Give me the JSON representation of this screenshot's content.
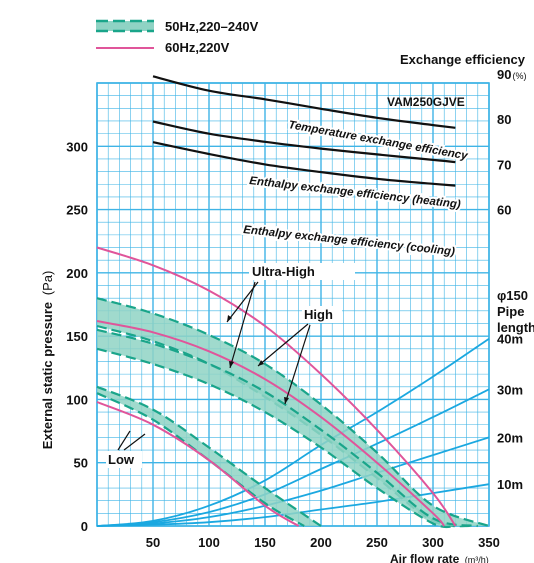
{
  "chart_data": {
    "type": "line",
    "model_label": "VAM250GJVE",
    "xlabel": "Air flow rate",
    "xlabel_unit": "(m³/h)",
    "ylabel": "External static pressure",
    "ylabel_unit": "(Pa)",
    "right_axis_title": "Exchange efficiency",
    "right_axis_unit": "(%)",
    "pipe_label_lines": [
      "φ150",
      "Pipe",
      "length"
    ],
    "xlim": [
      0,
      350
    ],
    "ylim_left": [
      0,
      350
    ],
    "ylim_right": [
      50,
      95
    ],
    "x_ticks": [
      "50",
      "100",
      "150",
      "200",
      "250",
      "300",
      "350"
    ],
    "y_ticks_left": [
      "0",
      "50",
      "100",
      "150",
      "200",
      "250",
      "300"
    ],
    "y_ticks_right": [
      "60",
      "70",
      "80",
      "90"
    ],
    "legend": [
      {
        "label": "50Hz,220–240V",
        "style": "dashed",
        "color": "#1aa58a"
      },
      {
        "label": "60Hz,220V",
        "style": "solid",
        "color": "#e0559a"
      }
    ],
    "annotations": {
      "ultra_high": "Ultra-High",
      "high": "High",
      "low": "Low"
    },
    "efficiency_series": [
      {
        "name": "Temperature exchange efficiency",
        "x": [
          50,
          100,
          150,
          200,
          250,
          300,
          320
        ],
        "y": [
          89.5,
          86.3,
          84.4,
          82.3,
          80.3,
          78.7,
          78.1
        ]
      },
      {
        "name": "Enthalpy exchange efficiency (heating)",
        "x": [
          50,
          100,
          150,
          200,
          250,
          300,
          320
        ],
        "y": [
          79.5,
          76.8,
          75.0,
          73.5,
          72.2,
          71.0,
          70.5
        ]
      },
      {
        "name": "Enthalpy exchange efficiency (cooling)",
        "x": [
          50,
          100,
          150,
          200,
          250,
          300,
          320
        ],
        "y": [
          74.9,
          72.3,
          70.0,
          68.3,
          66.8,
          65.7,
          65.3
        ]
      }
    ],
    "pipe_resistance_series": [
      {
        "name": "40m",
        "x": [
          0,
          50,
          100,
          150,
          200,
          250,
          300,
          350
        ],
        "y": [
          0,
          4,
          16,
          36,
          64,
          90,
          118,
          148
        ]
      },
      {
        "name": "30m",
        "x": [
          0,
          50,
          100,
          150,
          200,
          250,
          300,
          350
        ],
        "y": [
          0,
          3,
          11,
          25,
          45,
          65,
          86,
          108
        ]
      },
      {
        "name": "20m",
        "x": [
          0,
          50,
          100,
          150,
          200,
          250,
          300,
          350
        ],
        "y": [
          0,
          2,
          7,
          16,
          28,
          42,
          56,
          70
        ]
      },
      {
        "name": "10m",
        "x": [
          0,
          50,
          100,
          150,
          200,
          250,
          300,
          350
        ],
        "y": [
          0,
          1,
          3,
          7,
          13,
          19,
          26,
          33
        ]
      }
    ],
    "fan_curves_60hz": [
      {
        "name": "Ultra-High",
        "x": [
          0,
          50,
          100,
          150,
          200,
          250,
          300,
          320
        ],
        "y": [
          220,
          206,
          186,
          158,
          120,
          76,
          26,
          0
        ]
      },
      {
        "name": "High",
        "x": [
          0,
          50,
          100,
          150,
          200,
          250,
          300,
          310
        ],
        "y": [
          162,
          153,
          138,
          116,
          86,
          50,
          10,
          0
        ]
      },
      {
        "name": "Low",
        "x": [
          0,
          50,
          100,
          150,
          180
        ],
        "y": [
          98,
          80,
          52,
          16,
          0
        ]
      }
    ],
    "fan_bands_50hz": [
      {
        "name": "Ultra-High",
        "upper": {
          "x": [
            0,
            50,
            100,
            150,
            200,
            250,
            300,
            350
          ],
          "y": [
            180,
            168,
            151,
            128,
            96,
            58,
            16,
            0
          ]
        },
        "lower": {
          "x": [
            0,
            50,
            100,
            150,
            200,
            250,
            300,
            335
          ],
          "y": [
            158,
            146,
            128,
            102,
            72,
            38,
            4,
            0
          ]
        }
      },
      {
        "name": "High",
        "upper": {
          "x": [
            0,
            50,
            100,
            150,
            200,
            250,
            300,
            340
          ],
          "y": [
            155,
            144,
            128,
            106,
            76,
            42,
            6,
            0
          ]
        },
        "lower": {
          "x": [
            0,
            50,
            100,
            150,
            200,
            250,
            300,
            320
          ],
          "y": [
            140,
            128,
            112,
            90,
            62,
            30,
            2,
            0
          ]
        }
      },
      {
        "name": "Low",
        "upper": {
          "x": [
            0,
            50,
            100,
            150,
            200
          ],
          "y": [
            110,
            92,
            62,
            30,
            0
          ]
        },
        "lower": {
          "x": [
            0,
            50,
            100,
            150,
            185
          ],
          "y": [
            105,
            84,
            52,
            18,
            0
          ]
        }
      }
    ],
    "colors": {
      "grid": "#3fb4e6",
      "grid_bg": "#ffffff",
      "pipe": "#1ba8e0",
      "band_fill": "#8fd3c4",
      "band_stroke": "#1aa58a",
      "fan_60hz": "#e0559a",
      "efficiency": "#111111"
    }
  }
}
